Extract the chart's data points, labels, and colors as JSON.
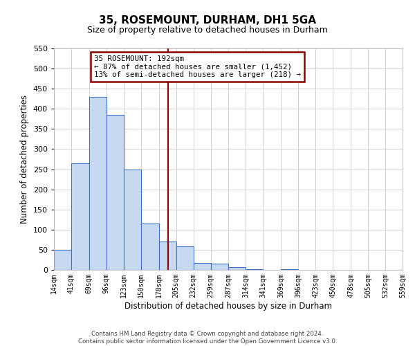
{
  "title": "35, ROSEMOUNT, DURHAM, DH1 5GA",
  "subtitle": "Size of property relative to detached houses in Durham",
  "xlabel": "Distribution of detached houses by size in Durham",
  "ylabel": "Number of detached properties",
  "bin_labels": [
    "14sqm",
    "41sqm",
    "69sqm",
    "96sqm",
    "123sqm",
    "150sqm",
    "178sqm",
    "205sqm",
    "232sqm",
    "259sqm",
    "287sqm",
    "314sqm",
    "341sqm",
    "369sqm",
    "396sqm",
    "423sqm",
    "450sqm",
    "478sqm",
    "505sqm",
    "532sqm",
    "559sqm"
  ],
  "bin_edges": [
    14,
    41,
    69,
    96,
    123,
    150,
    178,
    205,
    232,
    259,
    287,
    314,
    341,
    369,
    396,
    423,
    450,
    478,
    505,
    532,
    559
  ],
  "bar_heights": [
    50,
    265,
    430,
    385,
    250,
    115,
    70,
    58,
    17,
    15,
    7,
    2,
    0,
    2,
    0,
    0,
    0,
    0,
    0,
    0
  ],
  "bar_color": "#c6d9f0",
  "bar_edgecolor": "#4472c4",
  "vline_x": 192,
  "vline_color": "#8B0000",
  "ylim": [
    0,
    550
  ],
  "yticks": [
    0,
    50,
    100,
    150,
    200,
    250,
    300,
    350,
    400,
    450,
    500,
    550
  ],
  "annotation_title": "35 ROSEMOUNT: 192sqm",
  "annotation_line1": "← 87% of detached houses are smaller (1,452)",
  "annotation_line2": "13% of semi-detached houses are larger (218) →",
  "annotation_box_color": "#8B0000",
  "footer_line1": "Contains HM Land Registry data © Crown copyright and database right 2024.",
  "footer_line2": "Contains public sector information licensed under the Open Government Licence v3.0.",
  "grid_color": "#d0d0d0",
  "background_color": "#ffffff"
}
